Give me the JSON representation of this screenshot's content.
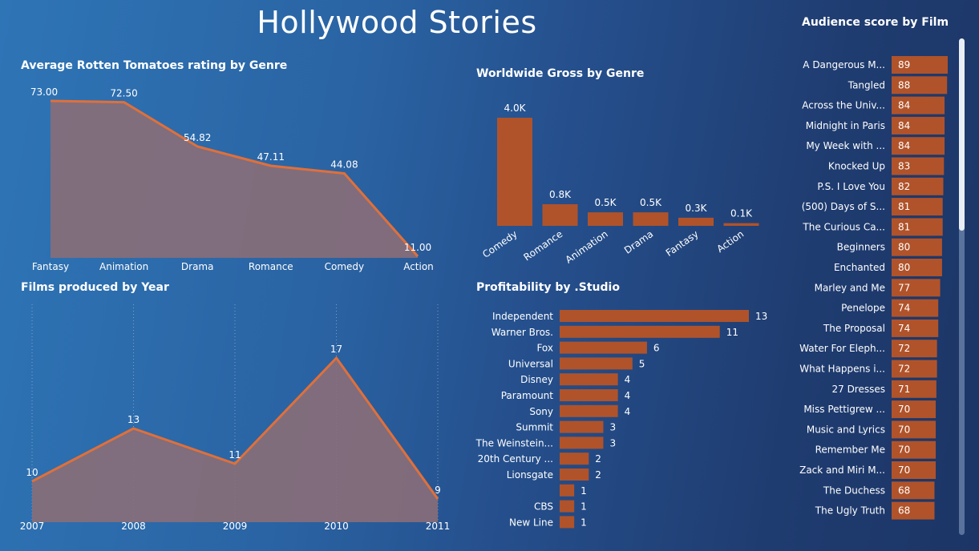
{
  "dashboard": {
    "title": "Hollywood Stories"
  },
  "colors": {
    "bar": "#b0532a",
    "line": "#e0703a",
    "area": "#8a6e78"
  },
  "chart_data": [
    {
      "id": "rt",
      "type": "area",
      "title": "Average Rotten Tomatoes rating by Genre",
      "categories": [
        "Fantasy",
        "Animation",
        "Drama",
        "Romance",
        "Comedy",
        "Action"
      ],
      "values": [
        73.0,
        72.5,
        54.82,
        47.11,
        44.08,
        11.0
      ],
      "labels": [
        "73.00",
        "72.50",
        "54.82",
        "47.11",
        "44.08",
        "11.00"
      ],
      "ylim": [
        11,
        73
      ]
    },
    {
      "id": "gross",
      "type": "bar",
      "title": "Worldwide Gross by Genre",
      "categories": [
        "Comedy",
        "Romance",
        "Animation",
        "Drama",
        "Fantasy",
        "Action"
      ],
      "values": [
        4.0,
        0.8,
        0.5,
        0.5,
        0.3,
        0.1
      ],
      "labels": [
        "4.0K",
        "0.8K",
        "0.5K",
        "0.5K",
        "0.3K",
        "0.1K"
      ],
      "ylim": [
        0,
        4.0
      ]
    },
    {
      "id": "films",
      "type": "area",
      "title": "Films produced by Year",
      "categories": [
        "2007",
        "2008",
        "2009",
        "2010",
        "2011"
      ],
      "values": [
        10,
        13,
        11,
        17,
        9
      ],
      "labels": [
        "10",
        "13",
        "11",
        "17",
        "9"
      ],
      "grid": "vertical-dotted"
    },
    {
      "id": "profit",
      "type": "bar",
      "orientation": "horizontal",
      "title": "Profitability by .Studio",
      "categories": [
        "Independent",
        "Warner Bros.",
        "Fox",
        "Universal",
        "Disney",
        "Paramount",
        "Sony",
        "Summit",
        "The Weinstein...",
        "20th Century ...",
        "Lionsgate",
        "",
        "CBS",
        "New Line"
      ],
      "values": [
        13,
        11,
        6,
        5,
        4,
        4,
        4,
        3,
        3,
        2,
        2,
        1,
        1,
        1
      ],
      "labels": [
        "13",
        "11",
        "6",
        "5",
        "4",
        "4",
        "4",
        "3",
        "3",
        "2",
        "2",
        "1",
        "1",
        "1"
      ]
    },
    {
      "id": "audience",
      "type": "bar",
      "orientation": "horizontal",
      "title": "Audience score by Film",
      "categories": [
        "A Dangerous M...",
        "Tangled",
        "Across the Univ...",
        "Midnight in Paris",
        "My Week with ...",
        "Knocked Up",
        "P.S. I Love You",
        "(500) Days of S...",
        "The Curious Ca...",
        "Beginners",
        "Enchanted",
        "Marley and Me",
        "Penelope",
        "The Proposal",
        "Water For Eleph...",
        "What Happens i...",
        "27 Dresses",
        "Miss Pettigrew ...",
        "Music and Lyrics",
        "Remember Me",
        "Zack and Miri M...",
        "The Duchess",
        "The Ugly Truth"
      ],
      "values": [
        89,
        88,
        84,
        84,
        84,
        83,
        82,
        81,
        81,
        80,
        80,
        77,
        74,
        74,
        72,
        72,
        71,
        70,
        70,
        70,
        70,
        68,
        68
      ],
      "labels": [
        "89",
        "88",
        "84",
        "84",
        "84",
        "83",
        "82",
        "81",
        "81",
        "80",
        "80",
        "77",
        "74",
        "74",
        "72",
        "72",
        "71",
        "70",
        "70",
        "70",
        "70",
        "68",
        "68"
      ],
      "data_labels_inside": true
    }
  ]
}
